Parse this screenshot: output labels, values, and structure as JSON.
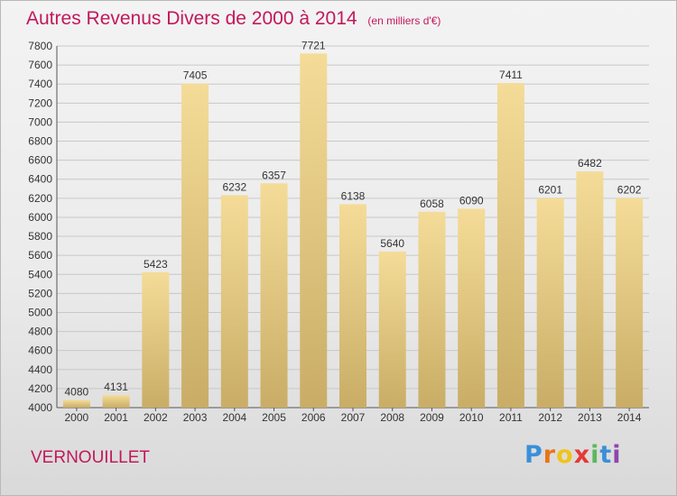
{
  "title": {
    "main": "Autres Revenus Divers de 2000 à 2014",
    "unit": "(en milliers d'€)"
  },
  "commune": "VERNOUILLET",
  "brand": {
    "name": "Proxiti",
    "letters": [
      "P",
      "r",
      "o",
      "x",
      "i",
      "t",
      "i"
    ],
    "colors": [
      "#3a8fd9",
      "#e8751a",
      "#f0c419",
      "#e53935",
      "#5cb85c",
      "#3a8fd9",
      "#8e44ad"
    ]
  },
  "colors": {
    "accent": "#c2185b",
    "bar_top": "#f4dc98",
    "bar_bottom": "#c9ad66",
    "grid": "#c8c8c8"
  },
  "chart_data": {
    "type": "bar",
    "categories": [
      "2000",
      "2001",
      "2002",
      "2003",
      "2004",
      "2005",
      "2006",
      "2007",
      "2008",
      "2009",
      "2010",
      "2011",
      "2012",
      "2013",
      "2014"
    ],
    "values": [
      4080,
      4131,
      5423,
      7405,
      6232,
      6357,
      7721,
      6138,
      5640,
      6058,
      6090,
      7411,
      6201,
      6482,
      6202
    ],
    "ylim": [
      4000,
      7800
    ],
    "ytick_step": 200,
    "grid": true,
    "data_labels": true
  }
}
